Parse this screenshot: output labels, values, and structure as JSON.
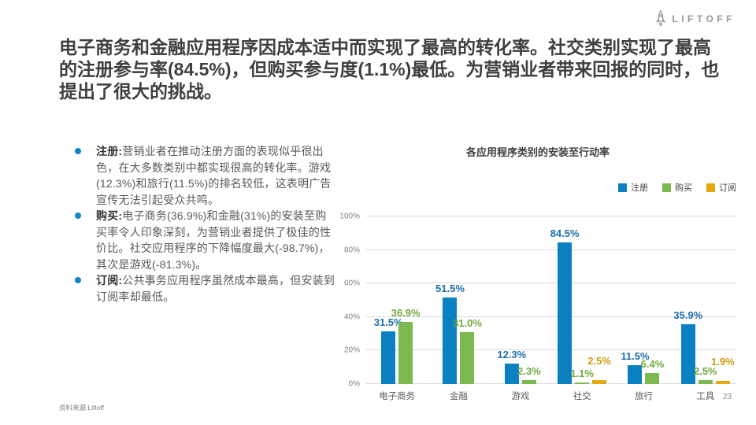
{
  "logo": {
    "brand": "LIFTOFF"
  },
  "headline": "电子商务和金融应用程序因成本适中而实现了最高的转化率。社交类别实现了最高的注册参与率(84.5%)，但购买参与度(1.1%)最低。为营销业者带来回报的同时，也提出了很大的挑战。",
  "bullets": [
    {
      "lead": "注册:",
      "text": "营销业者在推动注册方面的表现似乎很出色，在大多数类别中都实现很高的转化率。游戏(12.3%)和旅行(11.5%)的排名较低，这表明广告宣传无法引起受众共鸣。"
    },
    {
      "lead": "购买:",
      "text": "电子商务(36.9%)和金融(31%)的安装至购买率令人印象深刻，为营销业者提供了极佳的性价比。社交应用程序的下降幅度最大(-98.7%)，其次是游戏(-81.3%)。"
    },
    {
      "lead": "订阅:",
      "text": "公共事务应用程序虽然成本最高，但安装到订阅率却最低。"
    }
  ],
  "chart_data": {
    "type": "bar",
    "title": "各应用程序类别的安装至行动率",
    "categories": [
      "电子商务",
      "金融",
      "游戏",
      "社交",
      "旅行",
      "工具"
    ],
    "series": [
      {
        "name": "注册",
        "color": "#0b80c0",
        "label_color": "#1c6fa9",
        "values": [
          31.5,
          51.5,
          12.3,
          84.5,
          11.5,
          35.9
        ]
      },
      {
        "name": "购买",
        "color": "#7cb950",
        "label_color": "#71a83f",
        "values": [
          36.9,
          31.0,
          2.3,
          1.1,
          6.4,
          2.5
        ]
      },
      {
        "name": "订阅",
        "color": "#e2aa10",
        "label_color": "#cf9c0e",
        "values": [
          null,
          null,
          null,
          2.5,
          null,
          1.9
        ]
      }
    ],
    "value_suffix": "%",
    "y_ticks": [
      0,
      20,
      40,
      60,
      80,
      100
    ],
    "ylim": [
      0,
      100
    ],
    "grid": true,
    "legend_position": "top-right",
    "gridline_color": "#d9d9d9"
  },
  "footer": {
    "source": "资料来源:Liftoff",
    "page_number": "23"
  }
}
